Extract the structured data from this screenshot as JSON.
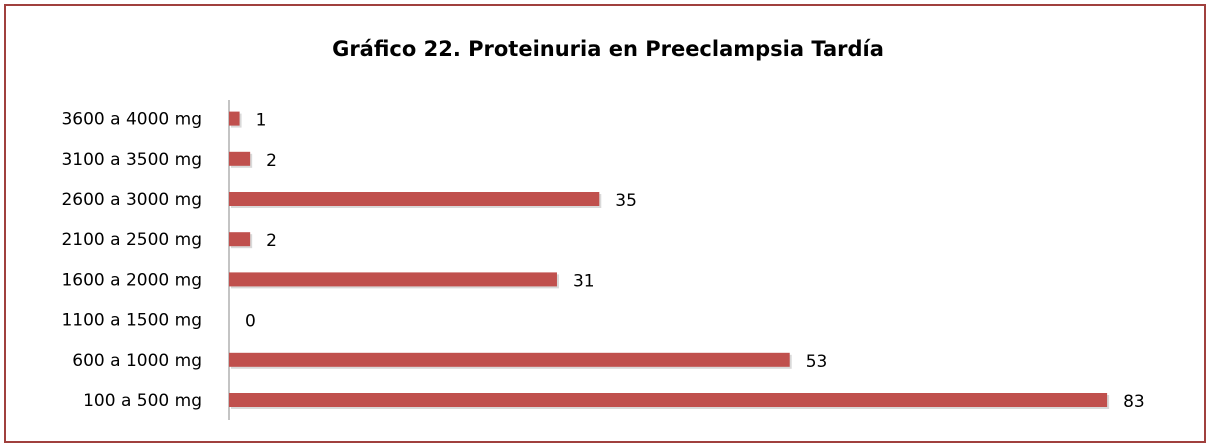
{
  "chart_data": {
    "type": "barh",
    "title": "Gráfico 22. Proteinuria en Preeclampsia Tardía",
    "categories": [
      "100 a 500 mg",
      "600 a 1000 mg",
      "1100 a 1500 mg",
      "1600 a 2000 mg",
      "2100 a 2500 mg",
      "2600 a 3000 mg",
      "3100 a 3500 mg",
      "3600 a 4000 mg"
    ],
    "values": [
      83,
      53,
      0,
      31,
      2,
      35,
      2,
      1
    ],
    "color": "#c0504d",
    "xlim": [
      0,
      88
    ]
  }
}
